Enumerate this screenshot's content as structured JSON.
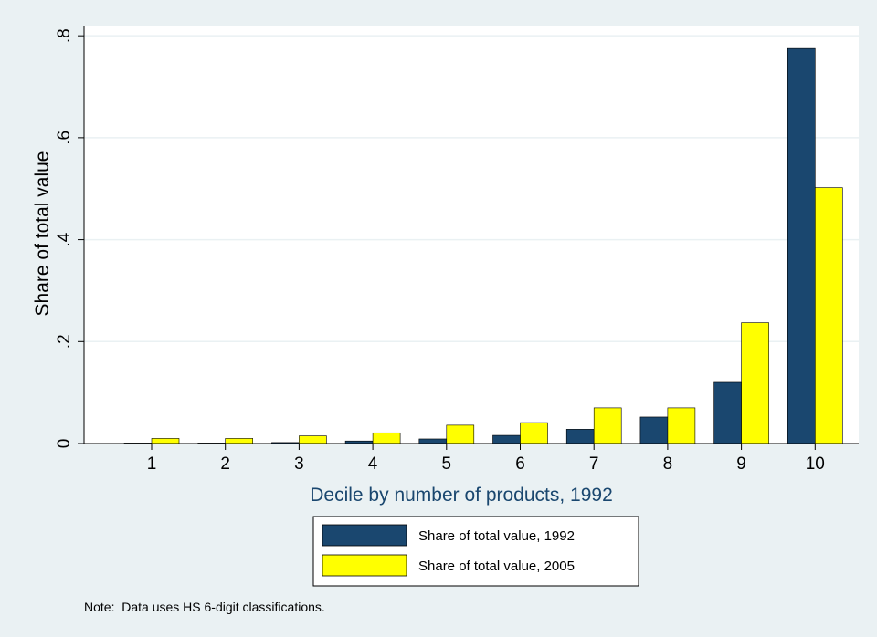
{
  "chart_data": {
    "type": "bar",
    "title": "",
    "xlabel": "Decile by number of products, 1992",
    "ylabel": "Share of total value",
    "categories": [
      "1",
      "2",
      "3",
      "4",
      "5",
      "6",
      "7",
      "8",
      "9",
      "10"
    ],
    "series": [
      {
        "name": "Share of total value, 1992",
        "color": "#1a476f",
        "values": [
          0.001,
          0.001,
          0.002,
          0.005,
          0.009,
          0.016,
          0.028,
          0.052,
          0.12,
          0.775
        ]
      },
      {
        "name": "Share of total value, 2005",
        "color": "#ffff00",
        "values": [
          0.01,
          0.01,
          0.015,
          0.021,
          0.036,
          0.041,
          0.07,
          0.07,
          0.237,
          0.502
        ]
      }
    ],
    "ylim": [
      0,
      0.8
    ],
    "yticks": [
      {
        "value": 0,
        "label": "0"
      },
      {
        "value": 0.2,
        "label": ".2"
      },
      {
        "value": 0.4,
        "label": ".4"
      },
      {
        "value": 0.6,
        "label": ".6"
      },
      {
        "value": 0.8,
        "label": ".8"
      }
    ],
    "grid": true,
    "legend_position": "bottom",
    "note": "Note:  Data uses HS 6-digit classifications."
  }
}
